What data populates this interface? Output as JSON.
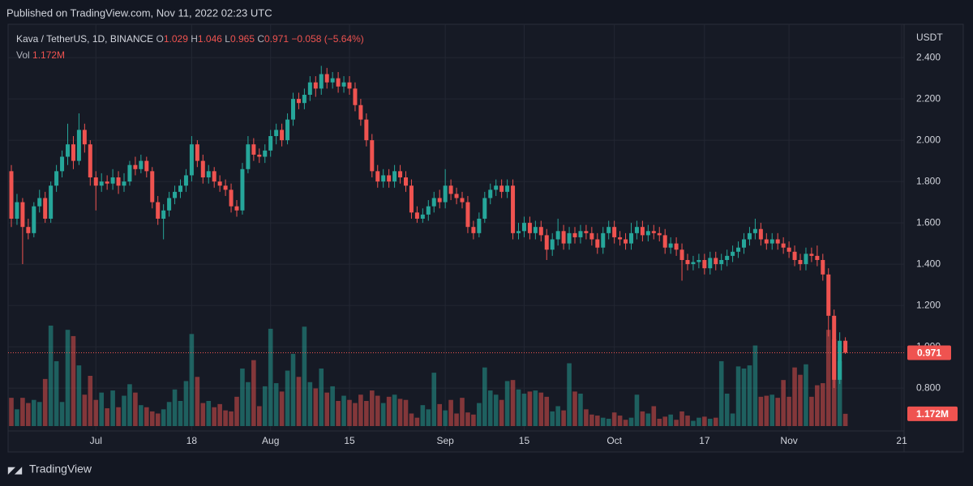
{
  "chart_data": {
    "type": "candlestick",
    "published": "Published on TradingView.com, Nov 11, 2022 02:23 UTC",
    "symbol": "Kava / TetherUS, 1D, BINANCE",
    "open_key": "O",
    "high_key": "H",
    "low_key": "L",
    "close_key": "C",
    "change": "−0.058 (−5.64%)",
    "volume_key": "Vol",
    "last_volume_label": "1.172M",
    "currency": "USDT",
    "brand": "TradingView",
    "up_color": "#26a69a",
    "down_color": "#ef5350",
    "ylim": [
      0.616,
      2.522
    ],
    "yticks": [
      {
        "value": 0.8,
        "label": "0.800"
      },
      {
        "value": 1.0,
        "label": "1.000"
      },
      {
        "value": 1.2,
        "label": "1.200"
      },
      {
        "value": 1.4,
        "label": "1.400"
      },
      {
        "value": 1.6,
        "label": "1.600"
      },
      {
        "value": 1.8,
        "label": "1.800"
      },
      {
        "value": 2.0,
        "label": "2.000"
      },
      {
        "value": 2.2,
        "label": "2.200"
      },
      {
        "value": 2.4,
        "label": "2.400"
      }
    ],
    "xticks": [
      {
        "value": "Jul 1",
        "label": "Jul"
      },
      {
        "value": "Jul 18",
        "label": "18"
      },
      {
        "value": "Aug 1",
        "label": "Aug"
      },
      {
        "value": "Aug 15",
        "label": "15"
      },
      {
        "value": "Sep 1",
        "label": "Sep"
      },
      {
        "value": "Sep 15",
        "label": "15"
      },
      {
        "value": "Oct 1",
        "label": "Oct"
      },
      {
        "value": "Oct 17",
        "label": "17"
      },
      {
        "value": "Nov 1",
        "label": "Nov"
      },
      {
        "value": "Nov 21",
        "label": "21"
      }
    ],
    "grid": true,
    "x": [
      "Jun 16",
      "Jun 17",
      "Jun 18",
      "Jun 19",
      "Jun 20",
      "Jun 21",
      "Jun 22",
      "Jun 23",
      "Jun 24",
      "Jun 25",
      "Jun 26",
      "Jun 27",
      "Jun 28",
      "Jun 29",
      "Jun 30",
      "Jul 1",
      "Jul 2",
      "Jul 3",
      "Jul 4",
      "Jul 5",
      "Jul 6",
      "Jul 7",
      "Jul 8",
      "Jul 9",
      "Jul 10",
      "Jul 11",
      "Jul 12",
      "Jul 13",
      "Jul 14",
      "Jul 15",
      "Jul 16",
      "Jul 17",
      "Jul 18",
      "Jul 19",
      "Jul 20",
      "Jul 21",
      "Jul 22",
      "Jul 23",
      "Jul 24",
      "Jul 25",
      "Jul 26",
      "Jul 27",
      "Jul 28",
      "Jul 29",
      "Jul 30",
      "Jul 31",
      "Aug 1",
      "Aug 2",
      "Aug 3",
      "Aug 4",
      "Aug 5",
      "Aug 6",
      "Aug 7",
      "Aug 8",
      "Aug 9",
      "Aug 10",
      "Aug 11",
      "Aug 12",
      "Aug 13",
      "Aug 14",
      "Aug 15",
      "Aug 16",
      "Aug 17",
      "Aug 18",
      "Aug 19",
      "Aug 20",
      "Aug 21",
      "Aug 22",
      "Aug 23",
      "Aug 24",
      "Aug 25",
      "Aug 26",
      "Aug 27",
      "Aug 28",
      "Aug 29",
      "Aug 30",
      "Aug 31",
      "Sep 1",
      "Sep 2",
      "Sep 3",
      "Sep 4",
      "Sep 5",
      "Sep 6",
      "Sep 7",
      "Sep 8",
      "Sep 9",
      "Sep 10",
      "Sep 11",
      "Sep 12",
      "Sep 13",
      "Sep 14",
      "Sep 15",
      "Sep 16",
      "Sep 17",
      "Sep 18",
      "Sep 19",
      "Sep 20",
      "Sep 21",
      "Sep 22",
      "Sep 23",
      "Sep 24",
      "Sep 25",
      "Sep 26",
      "Sep 27",
      "Sep 28",
      "Sep 29",
      "Sep 30",
      "Oct 1",
      "Oct 2",
      "Oct 3",
      "Oct 4",
      "Oct 5",
      "Oct 6",
      "Oct 7",
      "Oct 8",
      "Oct 9",
      "Oct 10",
      "Oct 11",
      "Oct 12",
      "Oct 13",
      "Oct 14",
      "Oct 15",
      "Oct 16",
      "Oct 17",
      "Oct 18",
      "Oct 19",
      "Oct 20",
      "Oct 21",
      "Oct 22",
      "Oct 23",
      "Oct 24",
      "Oct 25",
      "Oct 26",
      "Oct 27",
      "Oct 28",
      "Oct 29",
      "Oct 30",
      "Oct 31",
      "Nov 1",
      "Nov 2",
      "Nov 3",
      "Nov 4",
      "Nov 5",
      "Nov 6",
      "Nov 7",
      "Nov 8",
      "Nov 9",
      "Nov 10",
      "Nov 11"
    ],
    "open": [
      1.85,
      1.62,
      1.7,
      1.58,
      1.55,
      1.68,
      1.72,
      1.62,
      1.78,
      1.85,
      1.92,
      1.98,
      1.9,
      2.05,
      1.98,
      1.82,
      1.78,
      1.8,
      1.79,
      1.82,
      1.78,
      1.8,
      1.88,
      1.86,
      1.9,
      1.85,
      1.7,
      1.62,
      1.66,
      1.72,
      1.75,
      1.78,
      1.83,
      1.98,
      1.9,
      1.82,
      1.85,
      1.8,
      1.78,
      1.76,
      1.68,
      1.66,
      1.86,
      1.98,
      1.93,
      1.92,
      1.95,
      2.02,
      2.05,
      2.0,
      2.1,
      2.2,
      2.18,
      2.22,
      2.28,
      2.25,
      2.32,
      2.28,
      2.3,
      2.26,
      2.28,
      2.25,
      2.17,
      2.1,
      2.0,
      1.85,
      1.8,
      1.83,
      1.8,
      1.85,
      1.82,
      1.78,
      1.65,
      1.62,
      1.64,
      1.68,
      1.72,
      1.7,
      1.78,
      1.74,
      1.72,
      1.7,
      1.58,
      1.55,
      1.62,
      1.72,
      1.76,
      1.78,
      1.75,
      1.78,
      1.55,
      1.56,
      1.6,
      1.55,
      1.58,
      1.54,
      1.47,
      1.52,
      1.56,
      1.5,
      1.55,
      1.53,
      1.56,
      1.55,
      1.52,
      1.48,
      1.55,
      1.58,
      1.53,
      1.52,
      1.5,
      1.55,
      1.58,
      1.54,
      1.56,
      1.55,
      1.54,
      1.48,
      1.5,
      1.47,
      1.42,
      1.4,
      1.41,
      1.42,
      1.38,
      1.43,
      1.4,
      1.42,
      1.44,
      1.46,
      1.48,
      1.52,
      1.55,
      1.57,
      1.52,
      1.5,
      1.52,
      1.5,
      1.48,
      1.46,
      1.42,
      1.4,
      1.45,
      1.44,
      1.42,
      1.35,
      1.15,
      0.84,
      1.029
    ],
    "high": [
      1.88,
      1.74,
      1.72,
      1.62,
      1.7,
      1.76,
      1.75,
      1.8,
      1.88,
      1.95,
      2.08,
      2.02,
      2.13,
      2.08,
      2.0,
      1.85,
      1.84,
      1.83,
      1.86,
      1.85,
      1.84,
      1.9,
      1.92,
      1.93,
      1.92,
      1.87,
      1.73,
      1.69,
      1.75,
      1.78,
      1.81,
      1.86,
      2.02,
      2.0,
      1.93,
      1.88,
      1.87,
      1.83,
      1.81,
      1.79,
      1.71,
      1.89,
      2.02,
      2.01,
      1.96,
      1.98,
      2.05,
      2.08,
      2.08,
      2.13,
      2.23,
      2.23,
      2.25,
      2.31,
      2.31,
      2.36,
      2.35,
      2.33,
      2.33,
      2.31,
      2.31,
      2.28,
      2.2,
      2.13,
      2.03,
      1.88,
      1.86,
      1.86,
      1.88,
      1.88,
      1.85,
      1.81,
      1.68,
      1.67,
      1.71,
      1.75,
      1.76,
      1.86,
      1.81,
      1.77,
      1.75,
      1.73,
      1.61,
      1.65,
      1.75,
      1.79,
      1.81,
      1.81,
      1.81,
      1.81,
      1.6,
      1.63,
      1.63,
      1.61,
      1.61,
      1.57,
      1.55,
      1.62,
      1.59,
      1.58,
      1.58,
      1.59,
      1.59,
      1.58,
      1.55,
      1.58,
      1.61,
      1.61,
      1.56,
      1.55,
      1.6,
      1.61,
      1.61,
      1.59,
      1.59,
      1.58,
      1.57,
      1.53,
      1.53,
      1.5,
      1.45,
      1.44,
      1.45,
      1.45,
      1.46,
      1.46,
      1.45,
      1.47,
      1.49,
      1.51,
      1.55,
      1.58,
      1.62,
      1.6,
      1.55,
      1.55,
      1.55,
      1.53,
      1.51,
      1.49,
      1.45,
      1.48,
      1.48,
      1.49,
      1.45,
      1.38,
      1.18,
      1.07,
      1.046
    ],
    "low": [
      1.58,
      1.59,
      1.4,
      1.52,
      1.53,
      1.65,
      1.6,
      1.6,
      1.75,
      1.82,
      1.88,
      1.86,
      1.88,
      1.94,
      1.78,
      1.66,
      1.75,
      1.76,
      1.76,
      1.74,
      1.75,
      1.78,
      1.83,
      1.84,
      1.82,
      1.67,
      1.59,
      1.52,
      1.63,
      1.69,
      1.72,
      1.75,
      1.8,
      1.87,
      1.79,
      1.79,
      1.77,
      1.75,
      1.73,
      1.65,
      1.63,
      1.64,
      1.84,
      1.9,
      1.89,
      1.89,
      1.92,
      1.98,
      1.97,
      1.98,
      2.07,
      2.15,
      2.15,
      2.19,
      2.21,
      2.22,
      2.25,
      2.25,
      2.23,
      2.23,
      2.22,
      2.14,
      2.07,
      1.97,
      1.82,
      1.77,
      1.77,
      1.77,
      1.77,
      1.79,
      1.75,
      1.62,
      1.6,
      1.6,
      1.61,
      1.65,
      1.67,
      1.67,
      1.71,
      1.69,
      1.67,
      1.55,
      1.52,
      1.53,
      1.6,
      1.69,
      1.73,
      1.72,
      1.72,
      1.52,
      1.52,
      1.53,
      1.52,
      1.52,
      1.51,
      1.42,
      1.44,
      1.49,
      1.47,
      1.47,
      1.5,
      1.5,
      1.52,
      1.49,
      1.45,
      1.45,
      1.52,
      1.5,
      1.49,
      1.47,
      1.47,
      1.52,
      1.51,
      1.51,
      1.52,
      1.51,
      1.45,
      1.45,
      1.44,
      1.32,
      1.37,
      1.37,
      1.38,
      1.35,
      1.35,
      1.37,
      1.37,
      1.39,
      1.41,
      1.43,
      1.45,
      1.49,
      1.52,
      1.49,
      1.47,
      1.47,
      1.47,
      1.45,
      1.43,
      1.39,
      1.37,
      1.37,
      1.41,
      1.39,
      1.32,
      1.05,
      0.8,
      0.82,
      0.965
    ],
    "close": [
      1.62,
      1.7,
      1.58,
      1.55,
      1.68,
      1.72,
      1.62,
      1.78,
      1.85,
      1.92,
      1.98,
      1.9,
      2.05,
      1.98,
      1.82,
      1.78,
      1.8,
      1.79,
      1.82,
      1.78,
      1.8,
      1.88,
      1.86,
      1.9,
      1.85,
      1.7,
      1.62,
      1.66,
      1.72,
      1.75,
      1.78,
      1.83,
      1.98,
      1.9,
      1.82,
      1.85,
      1.8,
      1.78,
      1.76,
      1.68,
      1.66,
      1.86,
      1.98,
      1.93,
      1.92,
      1.95,
      2.02,
      2.05,
      2.0,
      2.1,
      2.2,
      2.18,
      2.22,
      2.28,
      2.25,
      2.32,
      2.28,
      2.3,
      2.26,
      2.28,
      2.25,
      2.17,
      2.1,
      2.0,
      1.85,
      1.8,
      1.83,
      1.8,
      1.85,
      1.82,
      1.78,
      1.65,
      1.62,
      1.64,
      1.68,
      1.72,
      1.7,
      1.78,
      1.74,
      1.72,
      1.7,
      1.58,
      1.55,
      1.62,
      1.72,
      1.76,
      1.78,
      1.75,
      1.78,
      1.55,
      1.56,
      1.6,
      1.55,
      1.58,
      1.54,
      1.47,
      1.52,
      1.56,
      1.5,
      1.55,
      1.53,
      1.56,
      1.55,
      1.52,
      1.48,
      1.55,
      1.58,
      1.53,
      1.52,
      1.5,
      1.55,
      1.58,
      1.54,
      1.56,
      1.55,
      1.54,
      1.48,
      1.5,
      1.47,
      1.42,
      1.4,
      1.41,
      1.42,
      1.38,
      1.43,
      1.4,
      1.42,
      1.44,
      1.46,
      1.48,
      1.52,
      1.55,
      1.57,
      1.52,
      1.5,
      1.52,
      1.5,
      1.48,
      1.46,
      1.42,
      1.4,
      1.45,
      1.44,
      1.42,
      1.35,
      1.15,
      0.84,
      1.029,
      0.971
    ],
    "volume": [
      2700000,
      1600000,
      2700000,
      2200000,
      2500000,
      2300000,
      4500000,
      9600000,
      6200000,
      2300000,
      9200000,
      8600000,
      5800000,
      3000000,
      4800000,
      2500000,
      3200000,
      1700000,
      3400000,
      1800000,
      2900000,
      4000000,
      3200000,
      2000000,
      1800000,
      1400000,
      1200000,
      1600000,
      2300000,
      3500000,
      2400000,
      4300000,
      8800000,
      4700000,
      2200000,
      2400000,
      1800000,
      2100000,
      1500000,
      1400000,
      2800000,
      5500000,
      4200000,
      6300000,
      1900000,
      3800000,
      9300000,
      4100000,
      3300000,
      5300000,
      6900000,
      4700000,
      9500000,
      4200000,
      3600000,
      5500000,
      3200000,
      3800000,
      2400000,
      2900000,
      2500000,
      2200000,
      3000000,
      2400000,
      3400000,
      2900000,
      2200000,
      2800000,
      3000000,
      2600000,
      2500000,
      1200000,
      800000,
      2000000,
      1600000,
      5100000,
      2100000,
      1500000,
      2500000,
      1200000,
      2700000,
      1300000,
      1100000,
      2200000,
      5600000,
      3400000,
      3000000,
      2500000,
      4300000,
      4400000,
      3500000,
      3100000,
      3300000,
      3400000,
      3200000,
      2800000,
      1400000,
      1900000,
      1500000,
      6000000,
      3300000,
      3100000,
      1600000,
      1100000,
      1000000,
      800000,
      700000,
      1300000,
      1000000,
      600000,
      800000,
      3000000,
      1400000,
      1200000,
      1900000,
      700000,
      900000,
      1100000,
      600000,
      1400000,
      1000000,
      500000,
      800000,
      900000,
      700000,
      800000,
      6200000,
      3100000,
      1200000,
      5700000,
      5500000,
      5800000,
      7700000,
      2800000,
      2900000,
      3000000,
      2700000,
      4400000,
      2800000,
      5600000,
      4900000,
      5900000,
      2800000,
      3900000,
      4100000,
      9200000,
      8300000,
      6200000,
      1172000
    ]
  }
}
